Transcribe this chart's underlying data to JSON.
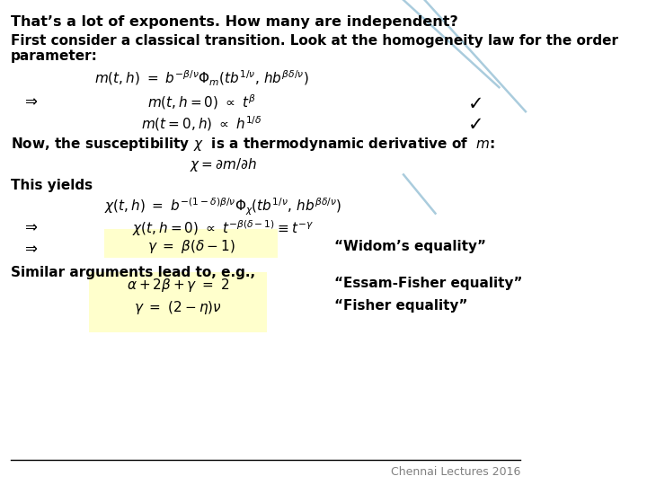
{
  "bg_color": "#ffffff",
  "title_line1": "That’s a lot of exponents. How many are independent?",
  "line2a": "First consider a classical transition. Look at the homogeneity law for the order",
  "line2b": "parameter:",
  "arrow_label": "=>",
  "check_color": "#000000",
  "widom": "“Widom’s equality”",
  "similar": "Similar arguments lead to, e.g.,",
  "essam": "“Essam-Fisher equality”",
  "fisher": "“Fisher equality”",
  "footer": "Chennai Lectures 2016",
  "highlight_color": "#ffffcc",
  "diagonal_color": "#aaccdd"
}
